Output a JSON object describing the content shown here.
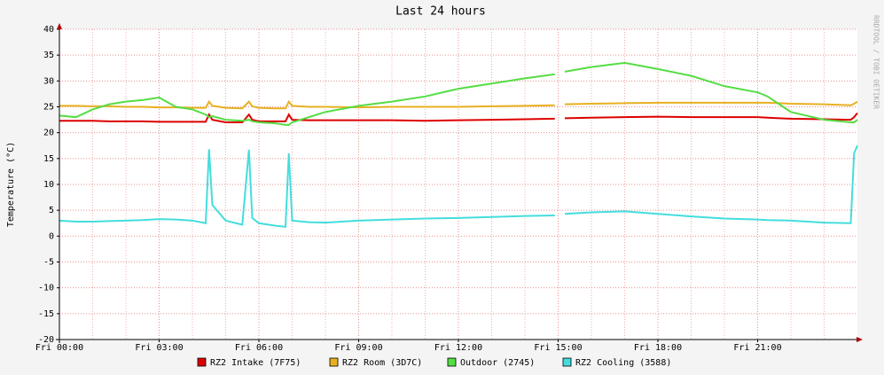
{
  "chart_data": {
    "type": "line",
    "title": "Last 24 hours",
    "y_label": "Temperature (°C)",
    "side_text": "RRDTOOL / TOBI OETIKER",
    "x": [
      0,
      0.5,
      1,
      1.5,
      2,
      2.5,
      3,
      3.5,
      4,
      4.4,
      4.5,
      4.6,
      5,
      5.5,
      5.7,
      5.8,
      6,
      6.5,
      6.8,
      6.9,
      7,
      7.5,
      8,
      9,
      10,
      11,
      12,
      13,
      14,
      14.9,
      15.05,
      15.2,
      16,
      17,
      18,
      19,
      20,
      21,
      21.3,
      22,
      23,
      23.8,
      23.9,
      24
    ],
    "series": [
      {
        "name": "RZ2 Intake (7F75)",
        "color": "#dd0000",
        "values": [
          22.3,
          22.3,
          22.3,
          22.2,
          22.2,
          22.2,
          22.1,
          22.1,
          22.1,
          22.1,
          23.5,
          22.5,
          22,
          22,
          23.5,
          22.5,
          22.2,
          22.2,
          22.2,
          23.5,
          22.5,
          22.4,
          22.4,
          22.4,
          22.4,
          22.3,
          22.4,
          22.5,
          22.6,
          22.7,
          null,
          22.8,
          22.9,
          23,
          23.1,
          23,
          23,
          23,
          22.9,
          22.7,
          22.6,
          22.5,
          23,
          23.8
        ]
      },
      {
        "name": "RZ2 Room (3D7C)",
        "color": "#e8b020",
        "values": [
          25.2,
          25.2,
          25.1,
          25.1,
          25,
          25,
          24.9,
          24.9,
          24.8,
          24.8,
          26,
          25.2,
          24.8,
          24.7,
          26,
          25.1,
          24.8,
          24.7,
          24.7,
          26,
          25.2,
          25,
          25,
          24.9,
          25,
          25,
          25,
          25.1,
          25.2,
          25.3,
          null,
          25.5,
          25.6,
          25.7,
          25.8,
          25.8,
          25.8,
          25.8,
          25.8,
          25.6,
          25.5,
          25.3,
          25.6,
          26
        ]
      },
      {
        "name": "Outdoor (2745)",
        "color": "#55dd44",
        "values": [
          23.3,
          23,
          24.5,
          25.5,
          26,
          26.3,
          26.8,
          25,
          24.5,
          23.5,
          23,
          23.2,
          22.5,
          22.3,
          22.5,
          22.2,
          22,
          21.8,
          21.5,
          21.5,
          22,
          23,
          24,
          25.2,
          26,
          27,
          28.5,
          29.5,
          30.5,
          31.3,
          null,
          31.8,
          32.7,
          33.5,
          32.3,
          31,
          29,
          27.8,
          27,
          24,
          22.5,
          22,
          22,
          22.5
        ]
      },
      {
        "name": "RZ2 Cooling (3588)",
        "color": "#44dddd",
        "values": [
          3,
          2.8,
          2.8,
          2.9,
          3,
          3.1,
          3.3,
          3.2,
          3,
          2.5,
          16.8,
          6,
          3,
          2.2,
          16.7,
          3.5,
          2.5,
          2,
          1.8,
          16,
          3,
          2.7,
          2.6,
          3,
          3.2,
          3.4,
          3.5,
          3.7,
          3.9,
          4,
          null,
          4.3,
          4.6,
          4.8,
          4.3,
          3.8,
          3.4,
          3.2,
          3.1,
          3,
          2.6,
          2.5,
          16,
          17.5
        ]
      }
    ],
    "xlim": [
      0,
      24
    ],
    "xticks": [
      {
        "value": 0,
        "label": "Fri 00:00"
      },
      {
        "value": 3,
        "label": "Fri 03:00"
      },
      {
        "value": 6,
        "label": "Fri 06:00"
      },
      {
        "value": 9,
        "label": "Fri 09:00"
      },
      {
        "value": 12,
        "label": "Fri 12:00"
      },
      {
        "value": 15,
        "label": "Fri 15:00"
      },
      {
        "value": 18,
        "label": "Fri 18:00"
      },
      {
        "value": 21,
        "label": "Fri 21:00"
      }
    ],
    "ylim": [
      -20,
      40
    ],
    "yticks": [
      -20,
      -15,
      -10,
      -5,
      0,
      5,
      10,
      15,
      20,
      25,
      30,
      35,
      40
    ],
    "grid": true
  }
}
